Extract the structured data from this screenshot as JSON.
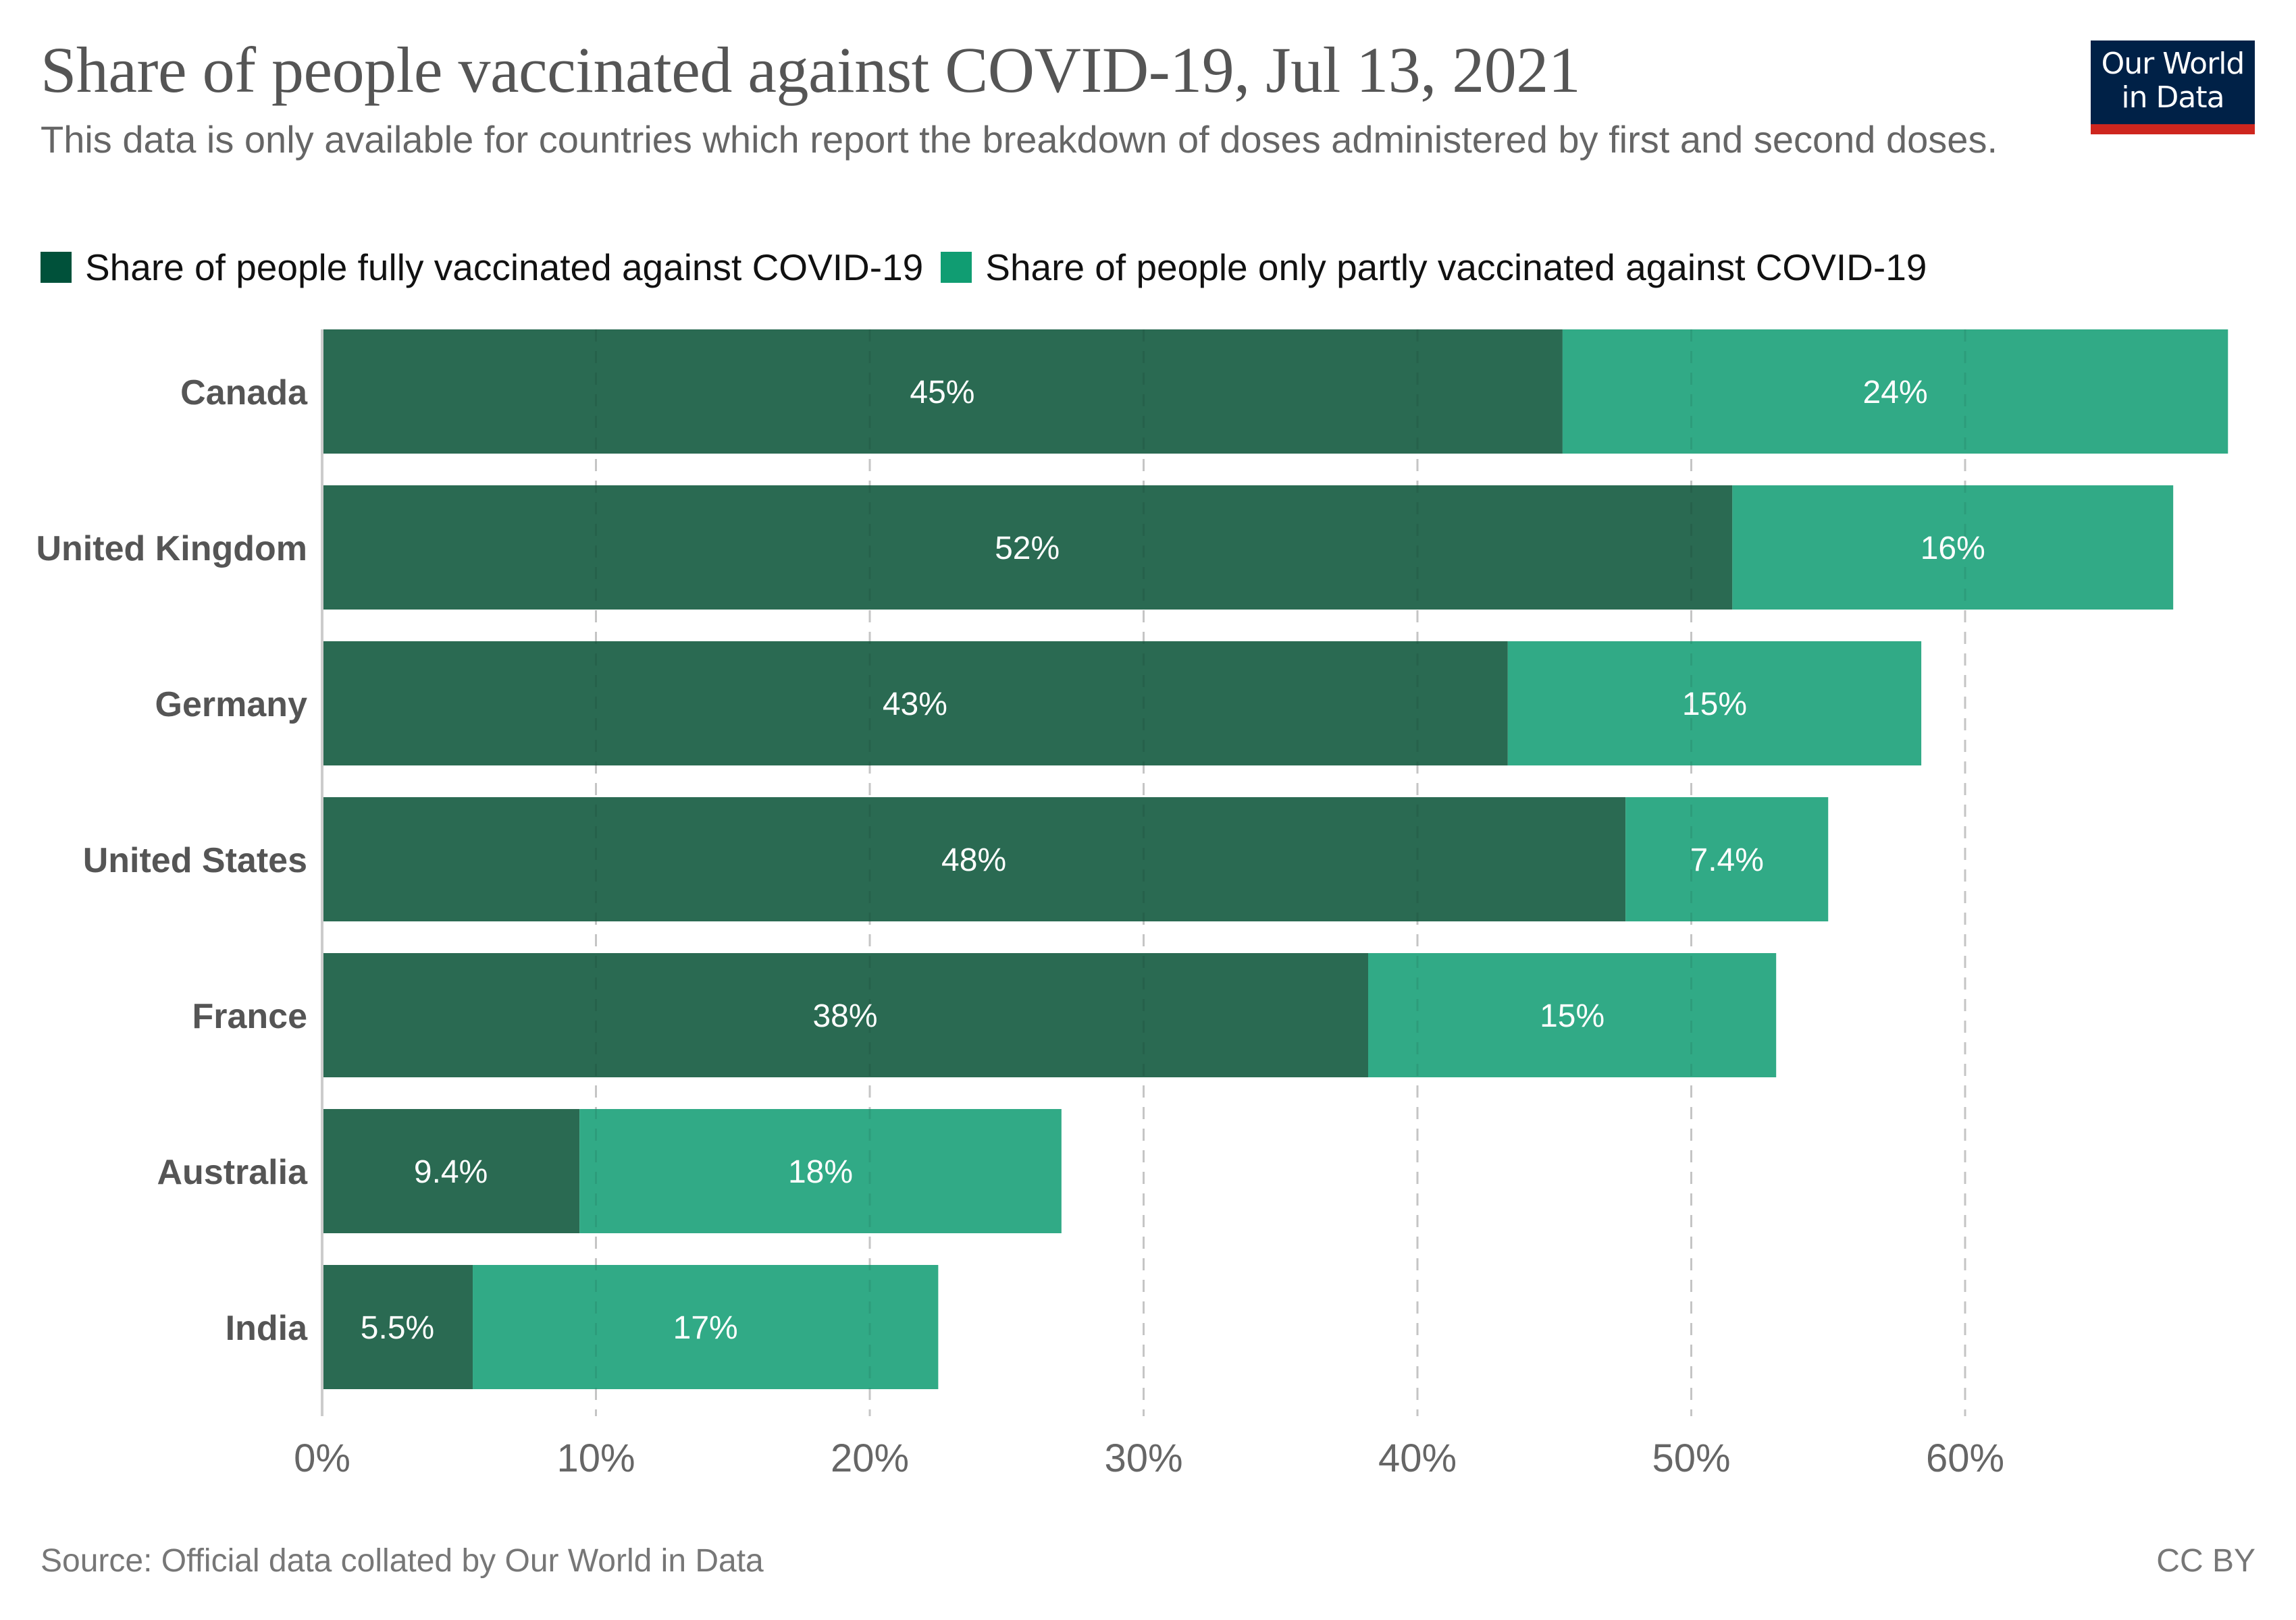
{
  "header": {
    "title": "Share of people vaccinated against COVID-19, Jul 13, 2021",
    "subtitle": "This data is only available for countries which report the breakdown of doses administered by first and second doses.",
    "logo": "Our World in Data"
  },
  "footer": {
    "source": "Source: Official data collated by Our World in Data",
    "license": "CC BY"
  },
  "colors": {
    "fully": "#2a6a52",
    "partly": "#31aa86",
    "fully_legend": "#00513a",
    "partly_legend": "#109d72",
    "axis": "#ccc",
    "label": "#555"
  },
  "chart_data": {
    "type": "bar",
    "orientation": "horizontal",
    "stacked": true,
    "title": "Share of people vaccinated against COVID-19, Jul 13, 2021",
    "xlabel": "",
    "ylabel": "",
    "xlim": [
      0,
      70
    ],
    "grid": true,
    "legend_position": "top-left",
    "x_ticks": [
      0,
      10,
      20,
      30,
      40,
      50,
      60
    ],
    "x_tick_labels": [
      "0%",
      "10%",
      "20%",
      "30%",
      "40%",
      "50%",
      "60%"
    ],
    "categories": [
      "Canada",
      "United Kingdom",
      "Germany",
      "United States",
      "France",
      "Australia",
      "India"
    ],
    "series": [
      {
        "name": "Share of people fully vaccinated against COVID-19",
        "values": [
          45.3,
          51.5,
          43.3,
          47.6,
          38.2,
          9.4,
          5.5
        ],
        "labels": [
          "45%",
          "52%",
          "43%",
          "48%",
          "38%",
          "9.4%",
          "5.5%"
        ]
      },
      {
        "name": "Share of people only partly vaccinated against COVID-19",
        "values": [
          24.3,
          16.1,
          15.1,
          7.4,
          14.9,
          17.6,
          17.0
        ],
        "labels": [
          "24%",
          "16%",
          "15%",
          "7.4%",
          "15%",
          "18%",
          "17%"
        ]
      }
    ]
  }
}
